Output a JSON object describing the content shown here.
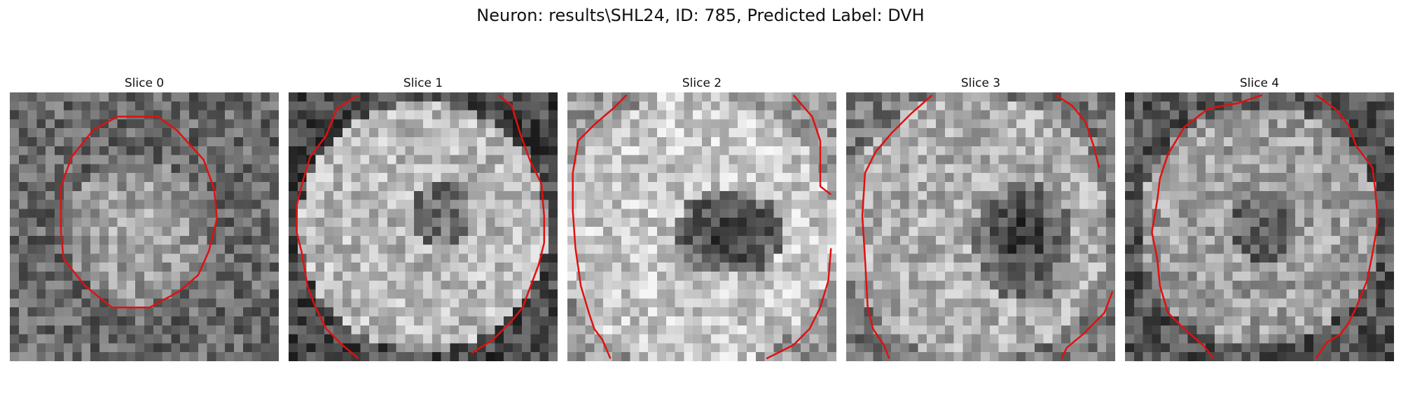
{
  "figure": {
    "title": "Neuron: results\\SHL24, ID: 785, Predicted Label: DVH"
  },
  "colors": {
    "contour": "#e01010",
    "background": "#ffffff"
  },
  "panels": [
    {
      "title": "Slice 0",
      "image": "grayscale-noise-bright-center",
      "contour": "red-octagon-roi"
    },
    {
      "title": "Slice 1",
      "image": "grayscale-bright-ring-dark-center",
      "contour": "red-roi-outline"
    },
    {
      "title": "Slice 2",
      "image": "grayscale-bright-ring-dark-hole",
      "contour": "red-roi-outline"
    },
    {
      "title": "Slice 3",
      "image": "grayscale-bright-ring-dark-hole",
      "contour": "red-roi-outline"
    },
    {
      "title": "Slice 4",
      "image": "grayscale-bright-ring-dark-center",
      "contour": "red-roi-outline"
    }
  ]
}
